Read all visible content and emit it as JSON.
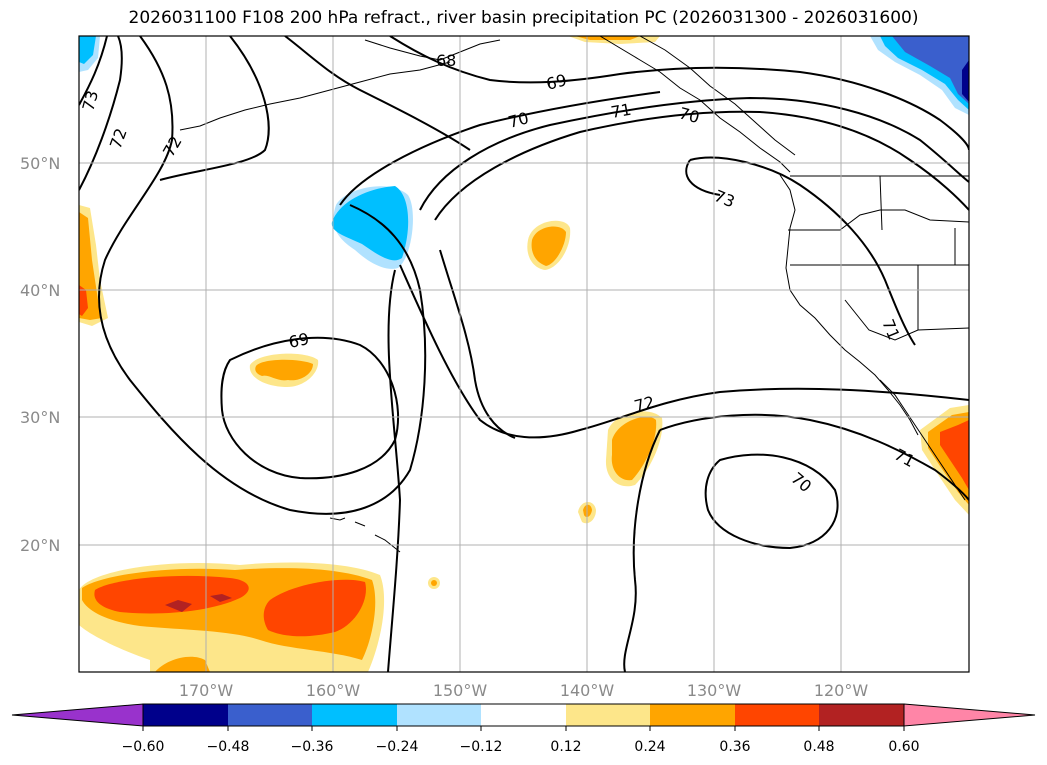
{
  "title": "2026031100 F108 200 hPa refract., river basin precipitation PC (2026031300 - 2026031600)",
  "map": {
    "projection": "lat-lon",
    "lon_range": [
      -180,
      -110
    ],
    "lat_range": [
      10,
      60
    ],
    "gridlines": true,
    "lat_labels": [
      "50°N",
      "40°N",
      "30°N",
      "20°N"
    ],
    "lon_labels": [
      "170°W",
      "160°W",
      "150°W",
      "140°W",
      "130°W",
      "120°W"
    ],
    "contour_labels": [
      "68",
      "69",
      "70",
      "71",
      "73",
      "72",
      "72",
      "69",
      "72",
      "71",
      "70",
      "73",
      "71",
      "70"
    ]
  },
  "colorbar": {
    "ticks": [
      "−0.60",
      "−0.48",
      "−0.36",
      "−0.24",
      "−0.12",
      "0.12",
      "0.24",
      "0.36",
      "0.48",
      "0.60"
    ],
    "colors": [
      "#9932cc",
      "#00008b",
      "#3a5fcd",
      "#00bfff",
      "#b0e2ff",
      "#ffffff",
      "#fde68a",
      "#ffa500",
      "#ff4500",
      "#b22222",
      "#ff85a7"
    ],
    "extend": "both"
  }
}
